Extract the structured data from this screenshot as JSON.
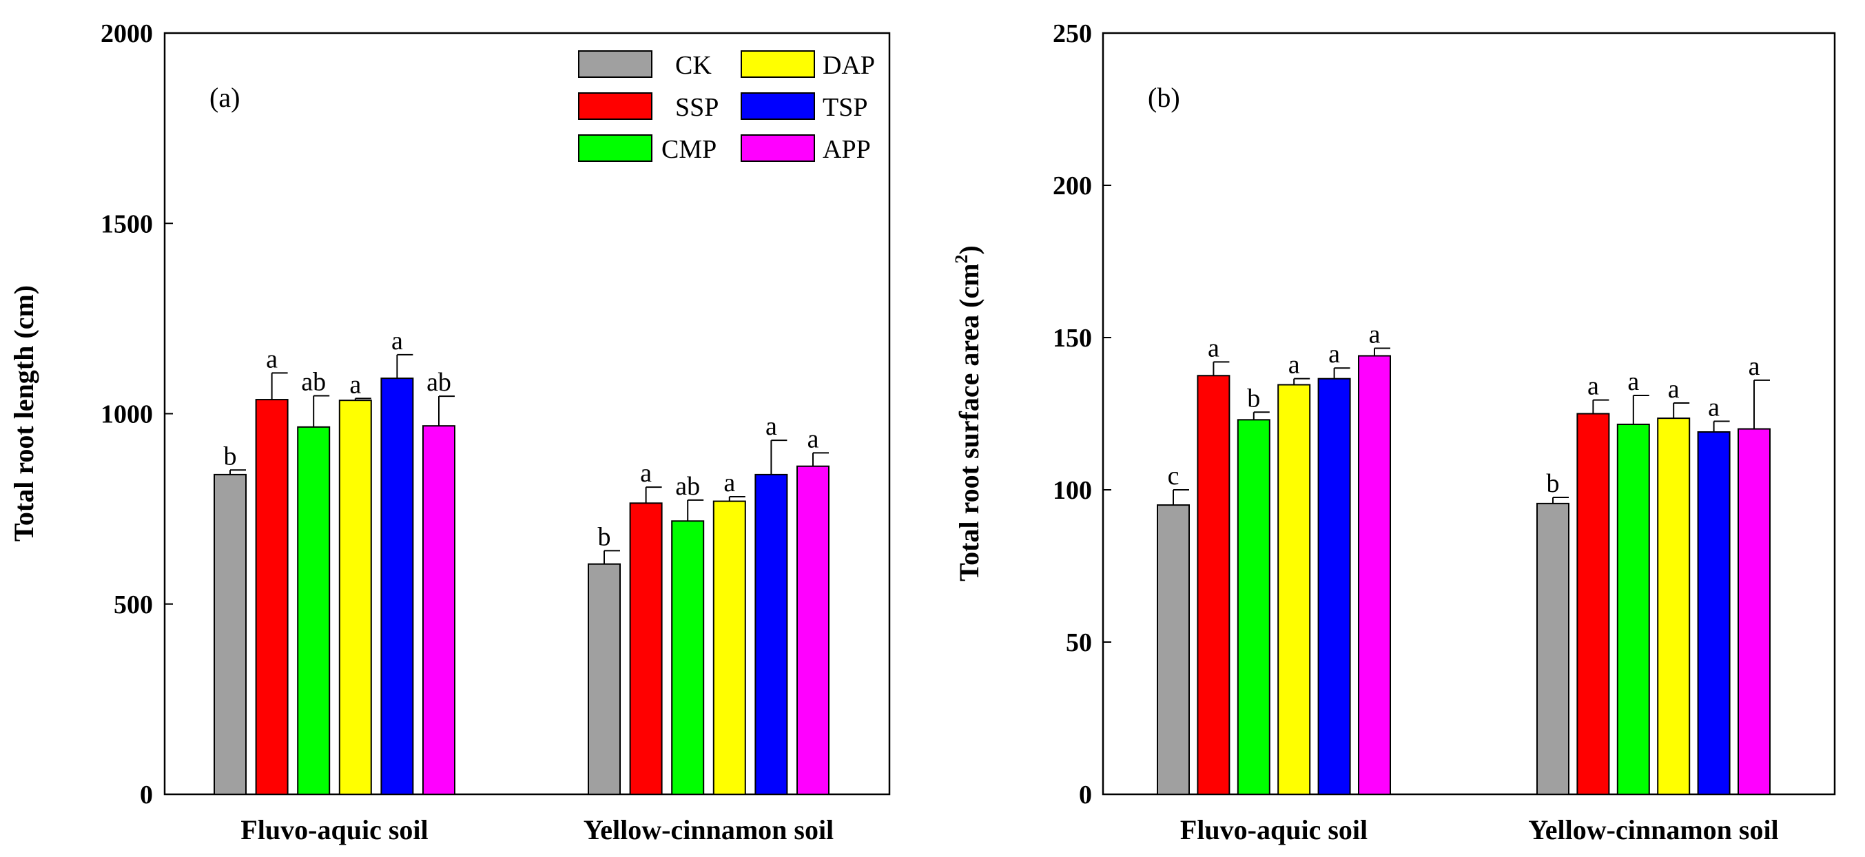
{
  "legend": {
    "items": [
      {
        "key": "CK",
        "label": "CK",
        "color": "#a0a0a0"
      },
      {
        "key": "DAP",
        "label": "DAP",
        "color": "#ffff00"
      },
      {
        "key": "SSP",
        "label": "SSP",
        "color": "#ff0000"
      },
      {
        "key": "TSP",
        "label": "TSP",
        "color": "#0000ff"
      },
      {
        "key": "CMP",
        "label": "CMP",
        "color": "#00ff00"
      },
      {
        "key": "APP",
        "label": "APP",
        "color": "#ff00ff"
      }
    ]
  },
  "chart_data": [
    {
      "type": "bar",
      "panel_label": "(a)",
      "ylabel": "Total root length (cm)",
      "xlabel": "",
      "ylim": [
        0,
        2000
      ],
      "yticks": [
        0,
        500,
        1000,
        1500,
        2000
      ],
      "categories": [
        "Fluvo-aquic soil",
        "Yellow-cinnamon soil"
      ],
      "series": [
        {
          "name": "CK",
          "color": "#a0a0a0",
          "values": [
            840,
            605
          ],
          "errors": [
            12,
            35
          ],
          "letters": [
            "b",
            "b"
          ]
        },
        {
          "name": "SSP",
          "color": "#ff0000",
          "values": [
            1037,
            765
          ],
          "errors": [
            70,
            42
          ],
          "letters": [
            "a",
            "a"
          ]
        },
        {
          "name": "CMP",
          "color": "#00ff00",
          "values": [
            965,
            718
          ],
          "errors": [
            82,
            55
          ],
          "letters": [
            "ab",
            "ab"
          ]
        },
        {
          "name": "DAP",
          "color": "#ffff00",
          "values": [
            1035,
            770
          ],
          "errors": [
            5,
            12
          ],
          "letters": [
            "a",
            "a"
          ]
        },
        {
          "name": "TSP",
          "color": "#0000ff",
          "values": [
            1093,
            840
          ],
          "errors": [
            62,
            90
          ],
          "letters": [
            "a",
            "a"
          ]
        },
        {
          "name": "APP",
          "color": "#ff00ff",
          "values": [
            968,
            862
          ],
          "errors": [
            78,
            35
          ],
          "letters": [
            "ab",
            "a"
          ]
        }
      ]
    },
    {
      "type": "bar",
      "panel_label": "(b)",
      "ylabel_main": "Total root surface area (cm",
      "ylabel_sup": "2",
      "ylabel_end": ")",
      "xlabel": "",
      "ylim": [
        0,
        250
      ],
      "yticks": [
        0,
        50,
        100,
        150,
        200,
        250
      ],
      "categories": [
        "Fluvo-aquic soil",
        "Yellow-cinnamon soil"
      ],
      "series": [
        {
          "name": "CK",
          "color": "#a0a0a0",
          "values": [
            95,
            95.5
          ],
          "errors": [
            5,
            2
          ],
          "letters": [
            "c",
            "b"
          ]
        },
        {
          "name": "SSP",
          "color": "#ff0000",
          "values": [
            137.5,
            125
          ],
          "errors": [
            4.5,
            4.5
          ],
          "letters": [
            "a",
            "a"
          ]
        },
        {
          "name": "CMP",
          "color": "#00ff00",
          "values": [
            123,
            121.5
          ],
          "errors": [
            2.5,
            9.5
          ],
          "letters": [
            "b",
            "a"
          ]
        },
        {
          "name": "DAP",
          "color": "#ffff00",
          "values": [
            134.5,
            123.5
          ],
          "errors": [
            2,
            5
          ],
          "letters": [
            "a",
            "a"
          ]
        },
        {
          "name": "TSP",
          "color": "#0000ff",
          "values": [
            136.5,
            119
          ],
          "errors": [
            3.5,
            3.5
          ],
          "letters": [
            "a",
            "a"
          ]
        },
        {
          "name": "APP",
          "color": "#ff00ff",
          "values": [
            144,
            120
          ],
          "errors": [
            2.5,
            16
          ],
          "letters": [
            "a",
            "a"
          ]
        }
      ]
    }
  ]
}
